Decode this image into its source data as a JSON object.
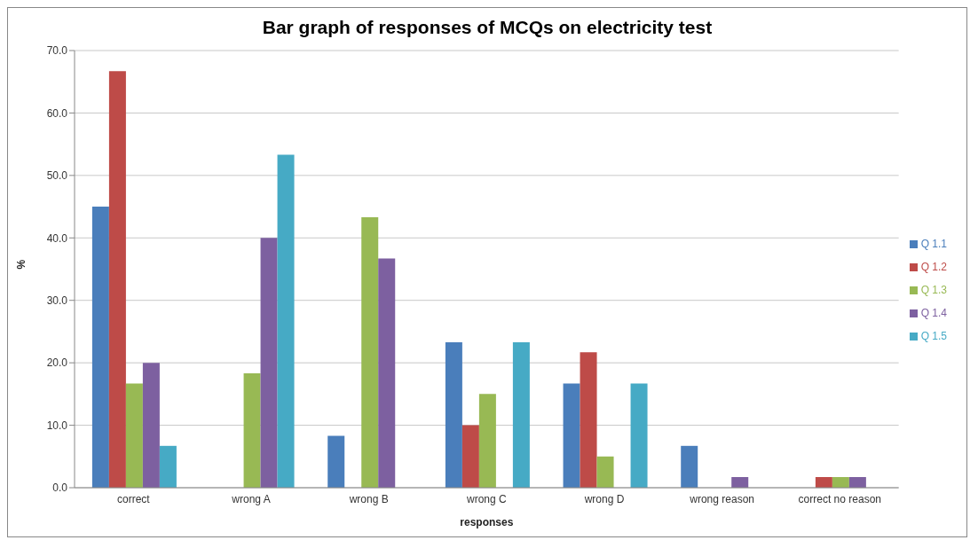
{
  "chart_data": {
    "type": "bar",
    "title": "Bar graph of responses  of MCQs on electricity test",
    "xlabel": "responses",
    "ylabel": "%",
    "categories": [
      "correct",
      "wrong A",
      "wrong B",
      "wrong C",
      "wrong D",
      "wrong reason",
      "correct no reason"
    ],
    "series": [
      {
        "name": "Q 1.1",
        "color": "#4a7ebb",
        "values": [
          45,
          0,
          8.3,
          23.3,
          16.7,
          6.7,
          0
        ]
      },
      {
        "name": "Q 1.2",
        "color": "#be4b48",
        "values": [
          66.7,
          0,
          0,
          10,
          21.7,
          0,
          1.7
        ]
      },
      {
        "name": "Q 1.3",
        "color": "#98b954",
        "values": [
          16.7,
          18.3,
          43.3,
          15,
          5,
          0,
          1.7
        ]
      },
      {
        "name": "Q 1.4",
        "color": "#7d60a0",
        "values": [
          20,
          40,
          36.7,
          0,
          0,
          1.7,
          1.7
        ]
      },
      {
        "name": "Q 1.5",
        "color": "#46aac5",
        "values": [
          6.7,
          53.3,
          0,
          23.3,
          16.7,
          0,
          0
        ]
      }
    ],
    "ylim": [
      0,
      70
    ],
    "yticks": [
      {
        "value": 0,
        "label": "0.0"
      },
      {
        "value": 10,
        "label": "10.0"
      },
      {
        "value": 20,
        "label": "20.0"
      },
      {
        "value": 30,
        "label": "30.0"
      },
      {
        "value": 40,
        "label": "40.0"
      },
      {
        "value": 50,
        "label": "50.0"
      },
      {
        "value": 60,
        "label": "60.0"
      },
      {
        "value": 70,
        "label": "70.0"
      }
    ],
    "grid": "y",
    "legend": "right"
  }
}
